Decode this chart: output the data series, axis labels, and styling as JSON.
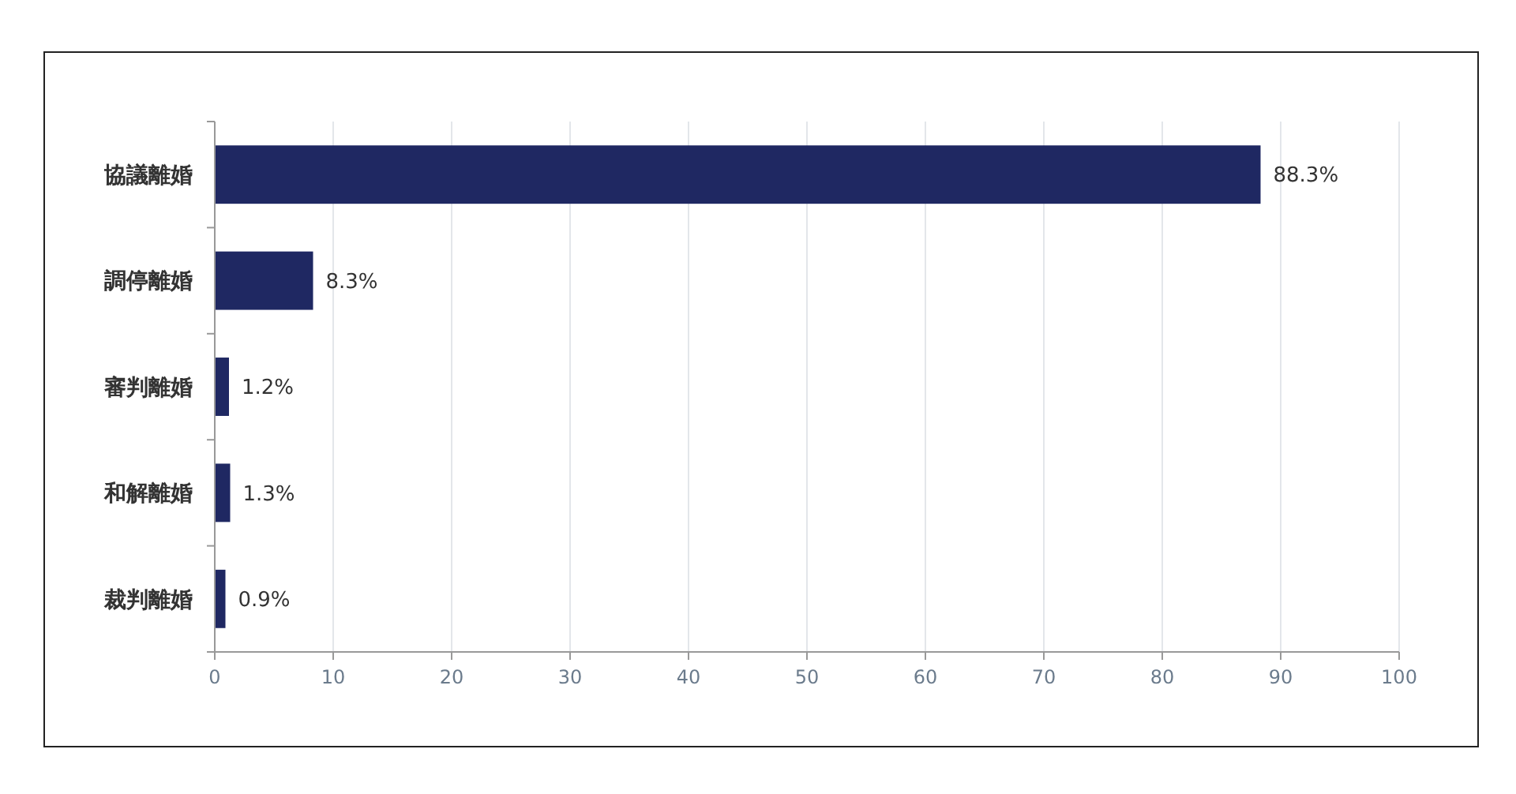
{
  "chart_data": {
    "type": "bar",
    "orientation": "horizontal",
    "categories": [
      "協議離婚",
      "調停離婚",
      "審判離婚",
      "和解離婚",
      "裁判離婚"
    ],
    "values": [
      88.3,
      8.3,
      1.2,
      1.3,
      0.9
    ],
    "value_labels": [
      "88.3%",
      "8.3%",
      "1.2%",
      "1.3%",
      "0.9%"
    ],
    "color": "#1f2862",
    "xlim": [
      0,
      100
    ],
    "xticks": [
      0,
      10,
      20,
      30,
      40,
      50,
      60,
      70,
      80,
      90,
      100
    ],
    "grid": "x"
  }
}
